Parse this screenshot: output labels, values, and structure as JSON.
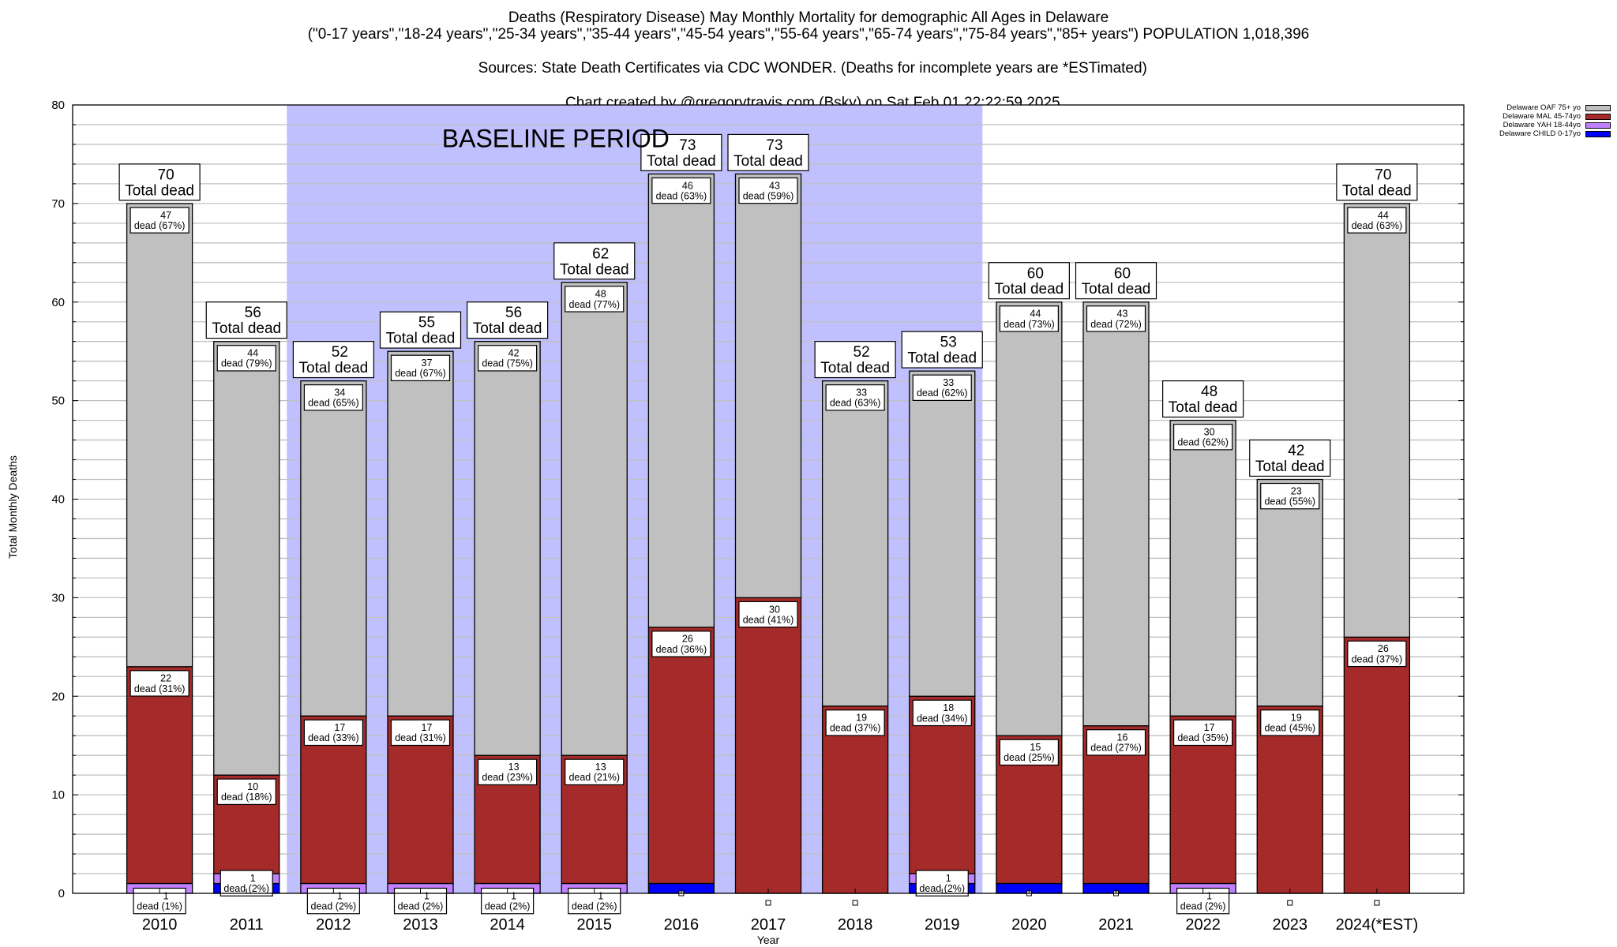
{
  "header": {
    "title_line1": "Deaths (Respiratory Disease) May Monthly Mortality for demographic All Ages in Delaware",
    "title_line2": "(\"0-17 years\",\"18-24 years\",\"25-34 years\",\"35-44 years\",\"45-54 years\",\"55-64 years\",\"65-74 years\",\"75-84 years\",\"85+ years\") POPULATION 1,018,396",
    "title_line3_left": "Sources: State Death Certificates via CDC WONDER. (Deaths for incomplete years are *ESTimated)",
    "title_line3_right": "Chart created by @gregorytravis.com (Bsky) on Sat Feb 01 22:22:59 2025"
  },
  "legend": [
    {
      "label": "Delaware OAF 75+ yo",
      "color": "#c0c0c0"
    },
    {
      "label": "Delaware MAL 45-74yo",
      "color": "#a52a2a"
    },
    {
      "label": "Delaware YAH 18-44yo",
      "color": "#c080ff"
    },
    {
      "label": "Delaware CHILD 0-17yo",
      "color": "#0000ff"
    }
  ],
  "colors": {
    "baseline_shade": "#c0c0ff",
    "grid": "#c0c0c0"
  },
  "chart_data": {
    "type": "bar",
    "stacked": true,
    "title": "Deaths (Respiratory Disease) May Monthly Mortality for demographic All Ages in Delaware",
    "xlabel": "Year",
    "ylabel": "Total Monthly Deaths",
    "ylim": [
      0,
      80
    ],
    "yticks": [
      0,
      10,
      20,
      30,
      40,
      50,
      60,
      70,
      80
    ],
    "grid": true,
    "legend_position": "top-right",
    "categories": [
      "2010",
      "2011",
      "2012",
      "2013",
      "2014",
      "2015",
      "2016",
      "2017",
      "2018",
      "2019",
      "2020",
      "2021",
      "2022",
      "2023",
      "2024(*EST)"
    ],
    "series": [
      {
        "name": "Delaware CHILD 0-17yo",
        "values": [
          0,
          1,
          0,
          0,
          0,
          0,
          1,
          0,
          0,
          1,
          1,
          1,
          0,
          0,
          0
        ]
      },
      {
        "name": "Delaware YAH 18-44yo",
        "values": [
          1,
          1,
          1,
          1,
          1,
          1,
          0,
          0,
          0,
          1,
          0,
          0,
          1,
          0,
          0
        ]
      },
      {
        "name": "Delaware MAL 45-74yo",
        "values": [
          22,
          10,
          17,
          17,
          13,
          13,
          26,
          30,
          19,
          18,
          15,
          16,
          17,
          19,
          26
        ]
      },
      {
        "name": "Delaware OAF 75+ yo",
        "values": [
          47,
          44,
          34,
          37,
          42,
          48,
          46,
          43,
          33,
          33,
          44,
          43,
          30,
          23,
          44
        ]
      }
    ],
    "totals": [
      70,
      56,
      52,
      55,
      56,
      62,
      73,
      73,
      52,
      53,
      60,
      60,
      48,
      42,
      70
    ],
    "segment_labels": {
      "oaf": [
        "47\ndead (67%)",
        "44\ndead (79%)",
        "34\ndead (65%)",
        "37\ndead (67%)",
        "42\ndead (75%)",
        "48\ndead (77%)",
        "46\ndead (63%)",
        "43\ndead (59%)",
        "33\ndead (63%)",
        "33\ndead (62%)",
        "44\ndead (73%)",
        "43\ndead (72%)",
        "30\ndead (62%)",
        "23\ndead (55%)",
        "44\ndead (63%)"
      ],
      "mal": [
        "22\ndead (31%)",
        "10\ndead (18%)",
        "17\ndead (33%)",
        "17\ndead (31%)",
        "13\ndead (23%)",
        "13\ndead (21%)",
        "26\ndead (36%)",
        "30\ndead (41%)",
        "19\ndead (37%)",
        "18\ndead (34%)",
        "15\ndead (25%)",
        "16\ndead (27%)",
        "17\ndead (35%)",
        "19\ndead (45%)",
        "26\ndead (37%)"
      ],
      "yah": [
        "1\ndead (1%)",
        "1\ndead (2%)",
        "1\ndead (2%)",
        "1\ndead (2%)",
        "1\ndead (2%)",
        "1\ndead (2%)",
        null,
        null,
        null,
        "1\ndead (2%)",
        null,
        null,
        "1\ndead (2%)",
        null,
        null
      ]
    },
    "total_label_suffix": "Total dead",
    "annotations": [
      {
        "text": "BASELINE PERIOD",
        "x_range": [
          "2012",
          "2019"
        ]
      }
    ]
  }
}
